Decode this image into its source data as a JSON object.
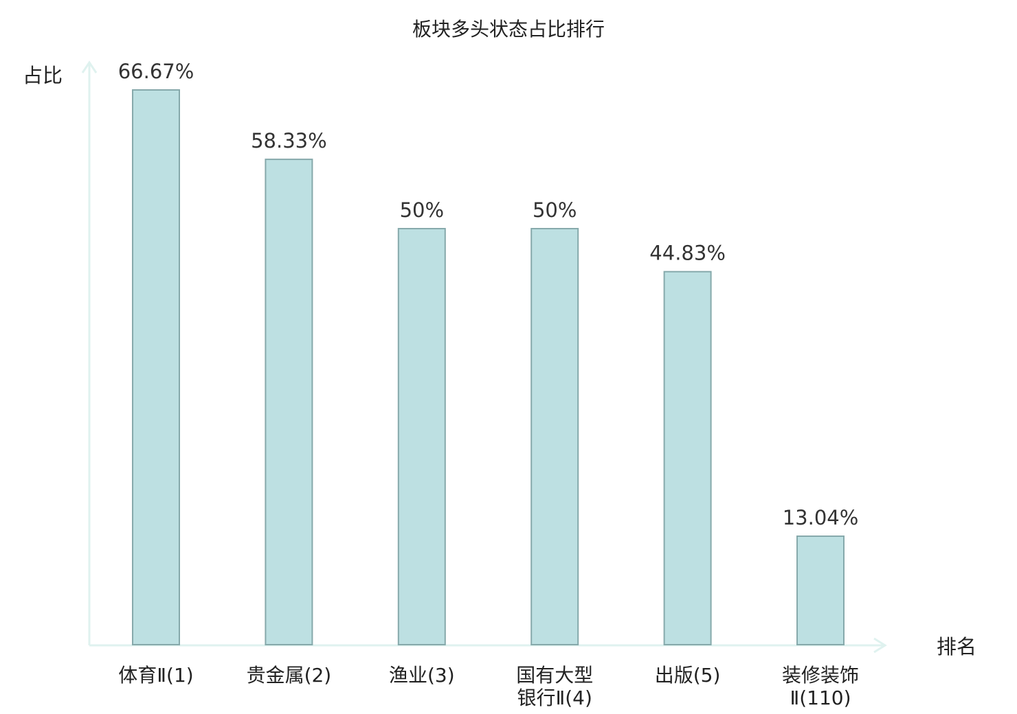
{
  "chart_data": {
    "type": "bar",
    "title": "板块多头状态占比排行",
    "ylabel": "占比",
    "xlabel": "排名",
    "categories": [
      {
        "lines": [
          "体育Ⅱ(1)"
        ],
        "highlight": false
      },
      {
        "lines": [
          "贵金属(2)"
        ],
        "highlight": false
      },
      {
        "lines": [
          "渔业(3)"
        ],
        "highlight": false
      },
      {
        "lines": [
          "国有大型",
          "银行Ⅱ(4)"
        ],
        "highlight": false
      },
      {
        "lines": [
          "出版(5)"
        ],
        "highlight": false
      },
      {
        "lines": [
          "装修装饰",
          "Ⅱ(110)"
        ],
        "highlight": true
      }
    ],
    "values": [
      66.67,
      58.33,
      50,
      50,
      44.83,
      13.04
    ],
    "value_labels": [
      "66.67%",
      "58.33%",
      "50%",
      "50%",
      "44.83%",
      "13.04%"
    ],
    "ylim": [
      0,
      66.67
    ],
    "grid": false,
    "colors": {
      "bar_fill": "#bde0e2",
      "bar_stroke": "#86a9ab",
      "axis": "#dff2ef",
      "highlight_text": "#e8141b",
      "text": "#222222"
    }
  }
}
